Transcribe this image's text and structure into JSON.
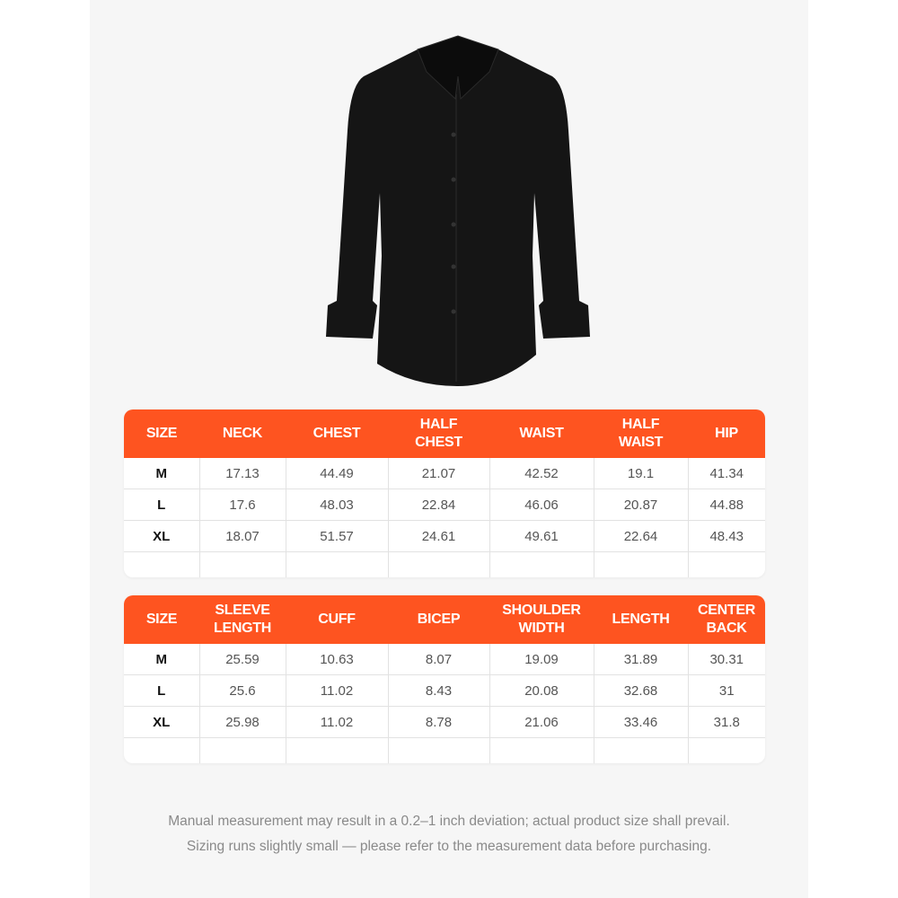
{
  "colors": {
    "accent": "#fe5420",
    "panel": "#f6f6f6",
    "shirt": "#111111"
  },
  "product_image": "black-long-sleeve-dress-shirt",
  "table1": {
    "headers": [
      "SIZE",
      "NECK",
      "CHEST",
      "HALF CHEST",
      "WAIST",
      "HALF WAIST",
      "HIP"
    ],
    "rows": [
      [
        "M",
        "17.13",
        "44.49",
        "21.07",
        "42.52",
        "19.1",
        "41.34"
      ],
      [
        "L",
        "17.6",
        "48.03",
        "22.84",
        "46.06",
        "20.87",
        "44.88"
      ],
      [
        "XL",
        "18.07",
        "51.57",
        "24.61",
        "49.61",
        "22.64",
        "48.43"
      ]
    ]
  },
  "table2": {
    "headers": [
      "SIZE",
      "SLEEVE LENGTH",
      "CUFF",
      "BICEP",
      "SHOULDER WIDTH",
      "LENGTH",
      "CENTER BACK"
    ],
    "rows": [
      [
        "M",
        "25.59",
        "10.63",
        "8.07",
        "19.09",
        "31.89",
        "30.31"
      ],
      [
        "L",
        "25.6",
        "11.02",
        "8.43",
        "20.08",
        "32.68",
        "31"
      ],
      [
        "XL",
        "25.98",
        "11.02",
        "8.78",
        "21.06",
        "33.46",
        "31.8"
      ]
    ]
  },
  "notes": [
    "Manual measurement may result in a 0.2–1 inch deviation; actual product size shall prevail.",
    "Sizing runs slightly small — please refer to the measurement data before purchasing."
  ]
}
